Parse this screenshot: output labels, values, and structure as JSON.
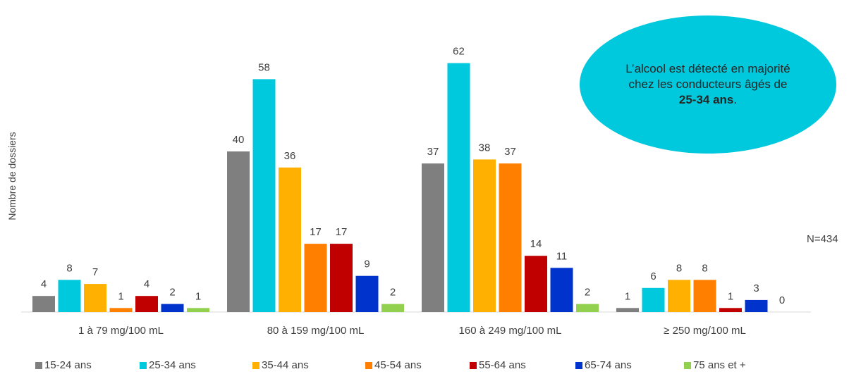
{
  "chart_data": {
    "type": "bar",
    "categories": [
      "1 à 79 mg/100 mL",
      "80 à 159 mg/100 mL",
      "160 à 249 mg/100 mL",
      "≥ 250 mg/100 mL"
    ],
    "series": [
      {
        "name": "15-24 ans",
        "color": "#7f7f7f",
        "values": [
          4,
          40,
          37,
          1
        ]
      },
      {
        "name": "25-34 ans",
        "color": "#00c8dd",
        "values": [
          8,
          58,
          62,
          6
        ]
      },
      {
        "name": "35-44 ans",
        "color": "#ffb000",
        "values": [
          7,
          36,
          38,
          8
        ]
      },
      {
        "name": "45-54 ans",
        "color": "#ff8000",
        "values": [
          1,
          17,
          37,
          8
        ]
      },
      {
        "name": "55-64 ans",
        "color": "#c00000",
        "values": [
          4,
          17,
          14,
          1
        ]
      },
      {
        "name": "65-74 ans",
        "color": "#0033cc",
        "values": [
          2,
          9,
          11,
          3
        ]
      },
      {
        "name": "75 ans et +",
        "color": "#92d050",
        "values": [
          1,
          2,
          2,
          0
        ]
      }
    ],
    "title": "",
    "ylabel": "Nombre de dossiers",
    "xlabel": "",
    "ylim": [
      0,
      62
    ],
    "grid": false,
    "legend_position": "bottom"
  },
  "annotations": {
    "n_label": "N=434",
    "callout": {
      "line1": "L’alcool est détecté en majorité",
      "line2": "chez les conducteurs âgés de",
      "bold": "25-34 ans",
      "suffix": "."
    }
  }
}
